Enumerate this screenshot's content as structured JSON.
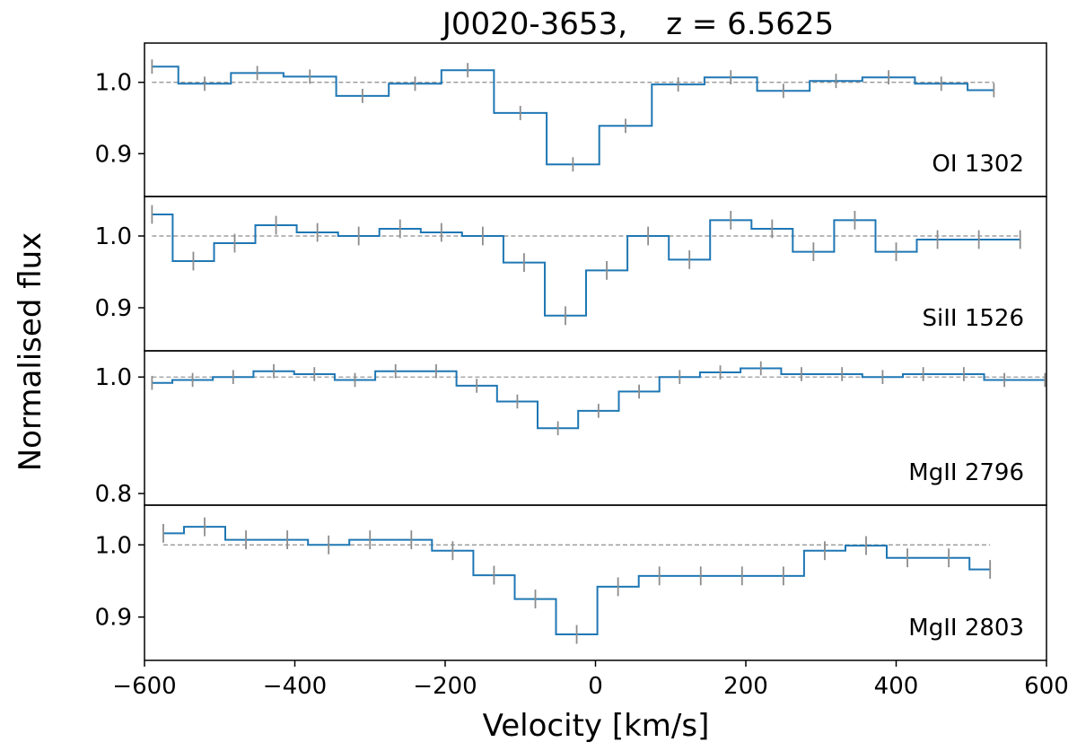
{
  "chart_data": {
    "type": "line",
    "title": "J0020-3653,    z = 6.5625",
    "xlabel": "Velocity [km/s]",
    "ylabel": "Normalised flux",
    "xlim": [
      -600,
      600
    ],
    "xticks": [
      -600,
      -400,
      -200,
      0,
      200,
      400,
      600
    ],
    "xtick_labels": [
      "−600",
      "−400",
      "−200",
      "0",
      "200",
      "400",
      "600"
    ],
    "colors": {
      "spectrum": "#1f77b4",
      "errors": "#8c8c8c",
      "reference": "#8c8c8c"
    },
    "panels": [
      {
        "name": "OI 1302",
        "ylim": [
          0.84,
          1.055
        ],
        "yticks": [
          0.9,
          1.0
        ],
        "ytick_labels": [
          "0.9",
          "1.0"
        ],
        "x": [
          -590,
          -520,
          -450,
          -380,
          -310,
          -240,
          -170,
          -100,
          -30,
          40,
          110,
          180,
          250,
          320,
          390,
          460,
          530
        ],
        "y": [
          1.022,
          0.998,
          1.013,
          1.008,
          0.981,
          0.998,
          1.017,
          0.957,
          0.885,
          0.939,
          0.997,
          1.007,
          0.988,
          1.002,
          1.007,
          0.998,
          0.989
        ],
        "err": [
          0.01,
          0.01,
          0.01,
          0.01,
          0.01,
          0.01,
          0.01,
          0.01,
          0.01,
          0.01,
          0.01,
          0.01,
          0.01,
          0.01,
          0.01,
          0.01,
          0.01
        ]
      },
      {
        "name": "SiII 1526",
        "ylim": [
          0.84,
          1.055
        ],
        "yticks": [
          0.9,
          1.0
        ],
        "ytick_labels": [
          "0.9",
          "1.0"
        ],
        "x": [
          -590,
          -535,
          -480,
          -425,
          -370,
          -315,
          -260,
          -205,
          -150,
          -95,
          -40,
          15,
          70,
          125,
          180,
          235,
          290,
          345,
          400,
          455,
          510,
          565
        ],
        "y": [
          1.03,
          0.965,
          0.99,
          1.015,
          1.005,
          1.0,
          1.01,
          1.005,
          1.0,
          0.963,
          0.889,
          0.952,
          1.0,
          0.967,
          1.022,
          1.01,
          0.978,
          1.022,
          0.978,
          0.995,
          0.995,
          0.995
        ],
        "err": [
          0.013,
          0.013,
          0.013,
          0.013,
          0.013,
          0.013,
          0.013,
          0.013,
          0.013,
          0.013,
          0.013,
          0.013,
          0.013,
          0.013,
          0.013,
          0.013,
          0.013,
          0.013,
          0.013,
          0.013,
          0.013,
          0.013
        ]
      },
      {
        "name": "MgII 2796",
        "ylim": [
          0.78,
          1.045
        ],
        "yticks": [
          0.8,
          1.0
        ],
        "ytick_labels": [
          "0.8",
          "1.0"
        ],
        "x": [
          -590,
          -536,
          -482,
          -428,
          -374,
          -320,
          -266,
          -212,
          -158,
          -104,
          -50,
          4,
          58,
          112,
          166,
          220,
          274,
          328,
          382,
          436,
          490,
          544,
          598
        ],
        "y": [
          0.99,
          0.995,
          1.0,
          1.01,
          1.005,
          0.995,
          1.01,
          1.01,
          0.985,
          0.958,
          0.912,
          0.942,
          0.975,
          1.0,
          1.008,
          1.015,
          1.005,
          1.005,
          1.0,
          1.005,
          1.005,
          0.995,
          0.995
        ],
        "err": [
          0.012,
          0.012,
          0.012,
          0.012,
          0.012,
          0.012,
          0.012,
          0.012,
          0.012,
          0.012,
          0.012,
          0.012,
          0.012,
          0.012,
          0.012,
          0.012,
          0.012,
          0.012,
          0.012,
          0.012,
          0.012,
          0.012,
          0.012
        ]
      },
      {
        "name": "MgII 2803",
        "ylim": [
          0.84,
          1.055
        ],
        "yticks": [
          0.9,
          1.0
        ],
        "ytick_labels": [
          "0.9",
          "1.0"
        ],
        "x": [
          -575,
          -520,
          -465,
          -410,
          -355,
          -300,
          -245,
          -190,
          -135,
          -80,
          -25,
          30,
          85,
          140,
          195,
          250,
          305,
          360,
          415,
          470,
          525
        ],
        "y": [
          1.016,
          1.025,
          1.007,
          1.007,
          1.0,
          1.007,
          1.007,
          0.992,
          0.958,
          0.925,
          0.876,
          0.942,
          0.957,
          0.957,
          0.957,
          0.957,
          0.992,
          0.999,
          0.982,
          0.982,
          0.966
        ],
        "err": [
          0.013,
          0.013,
          0.013,
          0.013,
          0.013,
          0.013,
          0.013,
          0.013,
          0.013,
          0.013,
          0.013,
          0.013,
          0.013,
          0.013,
          0.013,
          0.013,
          0.013,
          0.013,
          0.013,
          0.013,
          0.013
        ]
      }
    ]
  }
}
